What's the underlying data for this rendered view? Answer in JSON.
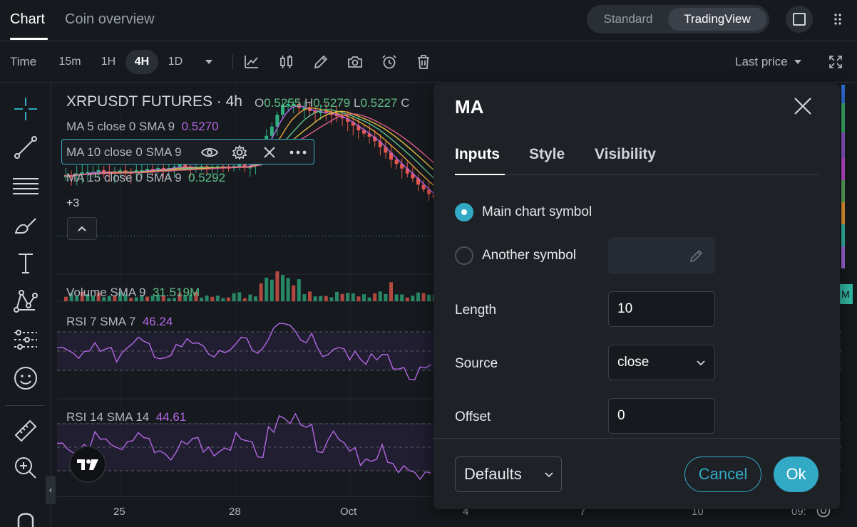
{
  "tabs": [
    {
      "label": "Chart"
    },
    {
      "label": "Coin overview"
    }
  ],
  "view_toggle": {
    "standard": "Standard",
    "tradingview": "TradingView"
  },
  "toolbar": {
    "time_label": "Time",
    "timeframes": [
      "15m",
      "1H",
      "4H",
      "1D"
    ],
    "active_timeframe": "4H",
    "last_price_label": "Last price"
  },
  "chart": {
    "symbol": "XRPUSDT FUTURES · 4h",
    "ohlc": {
      "o_label": "O",
      "o": "0.5255",
      "h_label": "H",
      "h": "0.5279",
      "l_label": "L",
      "l": "0.5227",
      "c_label": "C"
    },
    "ma_legend": [
      {
        "label": "MA 5 close 0 SMA 9",
        "value": "0.5270",
        "color": "#b567e5"
      },
      {
        "label": "MA 10 close 0 SMA 9",
        "value": "",
        "color": "#e5a03a"
      },
      {
        "label": "MA 15 close 0 SMA 9",
        "value": "0.5292",
        "color": "#5fc08a"
      }
    ],
    "more_indicators": "+3",
    "volume": {
      "label": "Volume SMA 9",
      "value": "31.519M",
      "value_color": "#5fc08a"
    },
    "rsi7": {
      "label": "RSI 7 SMA 7",
      "value": "46.24",
      "value_color": "#b567e5"
    },
    "rsi14": {
      "label": "RSI 14 SMA 14",
      "value": "44.61",
      "value_color": "#b567e5"
    },
    "time_labels": [
      "25",
      "28",
      "Oct",
      "4",
      "7",
      "10",
      "09:"
    ],
    "right_badge": "M",
    "colors": {
      "up": "#2fae7f",
      "down": "#e8584e",
      "rsi": "#b567e5",
      "accent": "#32a9c5"
    }
  },
  "dialog": {
    "title": "MA",
    "tabs": [
      "Inputs",
      "Style",
      "Visibility"
    ],
    "radio_main": "Main chart symbol",
    "radio_another": "Another symbol",
    "length_label": "Length",
    "length_value": "10",
    "source_label": "Source",
    "source_value": "close",
    "offset_label": "Offset",
    "offset_value": "0",
    "defaults": "Defaults",
    "cancel": "Cancel",
    "ok": "Ok"
  }
}
